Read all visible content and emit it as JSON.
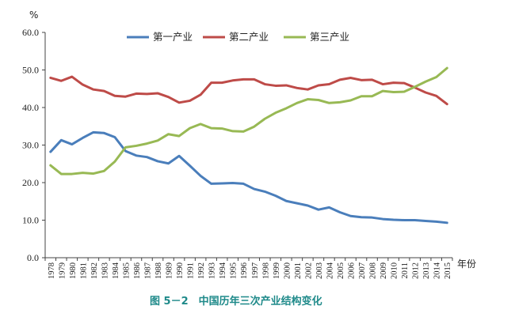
{
  "chart_data": {
    "type": "line",
    "caption": "图 5－2　中国历年三次产业结构变化",
    "y_unit": "%",
    "x_unit": "年份",
    "ylim": [
      0,
      60
    ],
    "yticks": [
      "0.0",
      "10.0",
      "20.0",
      "30.0",
      "40.0",
      "50.0",
      "60.0"
    ],
    "grid": false,
    "legend_position": "top",
    "categories": [
      "1978",
      "1979",
      "1980",
      "1981",
      "1982",
      "1983",
      "1984",
      "1985",
      "1986",
      "1987",
      "1988",
      "1989",
      "1990",
      "1991",
      "1992",
      "1993",
      "1994",
      "1995",
      "1996",
      "1997",
      "1998",
      "1999",
      "2000",
      "2001",
      "2002",
      "2003",
      "2004",
      "2005",
      "2006",
      "2007",
      "2008",
      "2009",
      "2010",
      "2011",
      "2012",
      "2013",
      "2014",
      "2015"
    ],
    "series": [
      {
        "name": "第一产业",
        "color": "#4a7ebb",
        "values": [
          28.2,
          31.3,
          30.2,
          31.9,
          33.4,
          33.2,
          32.1,
          28.4,
          27.2,
          26.8,
          25.7,
          25.1,
          27.1,
          24.5,
          21.8,
          19.7,
          19.8,
          19.9,
          19.7,
          18.3,
          17.6,
          16.5,
          15.1,
          14.5,
          13.9,
          12.8,
          13.4,
          12.1,
          11.1,
          10.8,
          10.7,
          10.3,
          10.1,
          10.0,
          10.0,
          9.8,
          9.6,
          9.3
        ]
      },
      {
        "name": "第二产业",
        "color": "#be4b48",
        "values": [
          47.9,
          47.1,
          48.2,
          46.1,
          44.8,
          44.4,
          43.1,
          42.9,
          43.7,
          43.6,
          43.8,
          42.8,
          41.3,
          41.8,
          43.4,
          46.6,
          46.6,
          47.2,
          47.5,
          47.5,
          46.2,
          45.8,
          45.9,
          45.2,
          44.8,
          45.9,
          46.2,
          47.4,
          47.9,
          47.3,
          47.4,
          46.2,
          46.6,
          46.5,
          45.3,
          44.0,
          43.1,
          40.9
        ]
      },
      {
        "name": "第三产业",
        "color": "#98b954",
        "values": [
          24.6,
          22.3,
          22.3,
          22.6,
          22.4,
          23.1,
          25.6,
          29.4,
          29.8,
          30.4,
          31.2,
          32.9,
          32.4,
          34.5,
          35.6,
          34.5,
          34.4,
          33.7,
          33.6,
          34.9,
          37.0,
          38.6,
          39.8,
          41.2,
          42.2,
          42.0,
          41.2,
          41.4,
          41.9,
          43.0,
          43.0,
          44.4,
          44.1,
          44.2,
          45.5,
          46.9,
          48.1,
          50.5
        ]
      }
    ]
  }
}
